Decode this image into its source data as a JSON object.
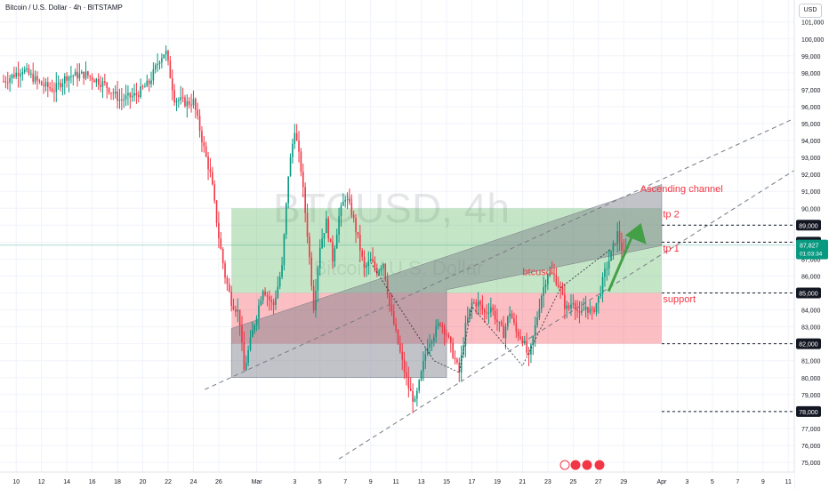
{
  "header": {
    "symbol_line": "Bitcoin / U.S. Dollar · 4h · BITSTAMP",
    "currency_button": "USD"
  },
  "watermark": {
    "ticker": "BTCUSD, 4h",
    "name": "Bitcoin / U.S. Dollar"
  },
  "price_axis": {
    "ticks": [
      75000,
      76000,
      77000,
      78000,
      79000,
      80000,
      81000,
      82000,
      83000,
      84000,
      85000,
      86000,
      87000,
      88000,
      89000,
      90000,
      91000,
      92000,
      93000,
      94000,
      95000,
      96000,
      97000,
      98000,
      99000,
      100000,
      101000
    ],
    "tick_labels": [
      "75,000",
      "76,000",
      "77,000",
      "78,000",
      "79,000",
      "80,000",
      "81,000",
      "82,000",
      "83,000",
      "84,000",
      "85,000",
      "86,000",
      "87,000",
      "88,000",
      "89,000",
      "90,000",
      "91,000",
      "92,000",
      "93,000",
      "94,000",
      "95,000",
      "96,000",
      "97,000",
      "98,000",
      "99,000",
      "100,000",
      "101,000"
    ],
    "marked_levels": [
      {
        "value": 89000,
        "label": "89,000"
      },
      {
        "value": 88000,
        "label": "88,000"
      },
      {
        "value": 85000,
        "label": "85,000"
      },
      {
        "value": 82000,
        "label": "82,000"
      },
      {
        "value": 78000,
        "label": "78,000"
      }
    ],
    "last_price": {
      "value": 87827,
      "label": "87,827",
      "countdown": "01:03:34",
      "color": "#089981"
    }
  },
  "time_axis": {
    "labels": [
      {
        "day": 10,
        "text": "10"
      },
      {
        "day": 12,
        "text": "12"
      },
      {
        "day": 14,
        "text": "14"
      },
      {
        "day": 16,
        "text": "16"
      },
      {
        "day": 18,
        "text": "18"
      },
      {
        "day": 20,
        "text": "20"
      },
      {
        "day": 22,
        "text": "22"
      },
      {
        "day": 24,
        "text": "24"
      },
      {
        "day": 26,
        "text": "26"
      },
      {
        "day": 29,
        "text": "Mar"
      },
      {
        "day": 32,
        "text": "3"
      },
      {
        "day": 34,
        "text": "5"
      },
      {
        "day": 36,
        "text": "7"
      },
      {
        "day": 38,
        "text": "9"
      },
      {
        "day": 40,
        "text": "11"
      },
      {
        "day": 42,
        "text": "13"
      },
      {
        "day": 44,
        "text": "15"
      },
      {
        "day": 46,
        "text": "17"
      },
      {
        "day": 48,
        "text": "19"
      },
      {
        "day": 50,
        "text": "21"
      },
      {
        "day": 52,
        "text": "23"
      },
      {
        "day": 54,
        "text": "25"
      },
      {
        "day": 56,
        "text": "27"
      },
      {
        "day": 58,
        "text": "29"
      },
      {
        "day": 61,
        "text": "Apr"
      },
      {
        "day": 63,
        "text": "3"
      },
      {
        "day": 65,
        "text": "5"
      },
      {
        "day": 67,
        "text": "7"
      },
      {
        "day": 69,
        "text": "9"
      },
      {
        "day": 71,
        "text": "11"
      }
    ]
  },
  "annotations": [
    {
      "id": "ascending-channel",
      "text": "Ascending channel",
      "color": "#f23645"
    },
    {
      "id": "tp2",
      "text": "tp 2",
      "color": "#f23645"
    },
    {
      "id": "tp1",
      "text": "tp 1",
      "color": "#f23645"
    },
    {
      "id": "support",
      "text": "support",
      "color": "#f23645"
    },
    {
      "id": "btcusd",
      "text": "btcusd",
      "color": "#f23645"
    }
  ],
  "colors": {
    "up": "#089981",
    "down": "#f23645",
    "target_zone": "#4caf50",
    "stop_zone": "#f23645",
    "channel_fill": "#787b86",
    "arrow": "#43a047"
  },
  "chart_data": {
    "type": "candlestick",
    "x_unit": "days since Feb 1",
    "ylim": [
      74500,
      102000
    ],
    "xlim": [
      9,
      73.5
    ],
    "candles_key_points": [
      [
        9,
        97500
      ],
      [
        10.5,
        98200
      ],
      [
        12,
        97300
      ],
      [
        13,
        97000
      ],
      [
        14,
        97800
      ],
      [
        15.5,
        97900
      ],
      [
        17,
        97300
      ],
      [
        18.2,
        96400
      ],
      [
        19.5,
        96700
      ],
      [
        20.5,
        97400
      ],
      [
        21.3,
        98800
      ],
      [
        21.8,
        99300
      ],
      [
        22.5,
        96500
      ],
      [
        23.5,
        96200
      ],
      [
        24,
        96300
      ],
      [
        24.4,
        95000
      ],
      [
        24.9,
        93300
      ],
      [
        25.4,
        91800
      ],
      [
        26,
        88300
      ],
      [
        26.5,
        86000
      ],
      [
        27,
        84500
      ],
      [
        27.6,
        83800
      ],
      [
        28,
        80400
      ],
      [
        28.6,
        82500
      ],
      [
        29.5,
        85300
      ],
      [
        30.3,
        84200
      ],
      [
        31,
        86500
      ],
      [
        31.5,
        92000
      ],
      [
        32,
        94700
      ],
      [
        32.5,
        92300
      ],
      [
        33,
        88500
      ],
      [
        33.5,
        84200
      ],
      [
        34,
        87800
      ],
      [
        34.5,
        89200
      ],
      [
        35,
        87000
      ],
      [
        35.5,
        89500
      ],
      [
        36,
        90700
      ],
      [
        36.5,
        89800
      ],
      [
        37,
        88200
      ],
      [
        37.5,
        86400
      ],
      [
        38,
        86900
      ],
      [
        38.5,
        86300
      ],
      [
        39,
        86800
      ],
      [
        39.5,
        84300
      ],
      [
        40,
        82600
      ],
      [
        40.5,
        80900
      ],
      [
        41,
        79400
      ],
      [
        41.5,
        78500
      ],
      [
        42,
        80200
      ],
      [
        42.5,
        82000
      ],
      [
        43,
        82600
      ],
      [
        43.5,
        83300
      ],
      [
        44,
        82600
      ],
      [
        44.5,
        81400
      ],
      [
        45,
        80300
      ],
      [
        45.5,
        83000
      ],
      [
        46,
        84400
      ],
      [
        46.5,
        84400
      ],
      [
        47,
        83800
      ],
      [
        47.5,
        84200
      ],
      [
        48,
        83300
      ],
      [
        48.5,
        82600
      ],
      [
        49,
        83900
      ],
      [
        49.5,
        82700
      ],
      [
        50,
        82300
      ],
      [
        50.5,
        81100
      ],
      [
        51,
        83000
      ],
      [
        51.5,
        84900
      ],
      [
        52,
        86200
      ],
      [
        52.5,
        86000
      ],
      [
        53,
        85200
      ],
      [
        53.3,
        84300
      ],
      [
        53.6,
        84000
      ],
      [
        54,
        84600
      ],
      [
        54.5,
        83600
      ],
      [
        55,
        84200
      ],
      [
        55.5,
        83800
      ],
      [
        56,
        84700
      ],
      [
        56.5,
        86200
      ],
      [
        57,
        87300
      ],
      [
        57.5,
        88500
      ],
      [
        58,
        87200
      ],
      [
        58.3,
        87900
      ]
    ],
    "zones": [
      {
        "name": "target",
        "from_day": 27,
        "to_day": 61,
        "y_low": 85000,
        "y_high": 90000
      },
      {
        "name": "stop",
        "from_day": 27,
        "to_day": 61,
        "y_low": 82000,
        "y_high": 85000
      }
    ],
    "channel": {
      "lower": [
        [
          26.2,
          79800
        ],
        [
          61,
          87800
        ]
      ],
      "upper": [
        [
          24.9,
          79300
        ],
        [
          73.5,
          96000
        ]
      ],
      "bottom_line": [
        [
          35.5,
          75200
        ],
        [
          73.5,
          93200
        ]
      ]
    },
    "dashed_levels": [
      89000,
      88000,
      85000,
      82000,
      78000
    ]
  }
}
